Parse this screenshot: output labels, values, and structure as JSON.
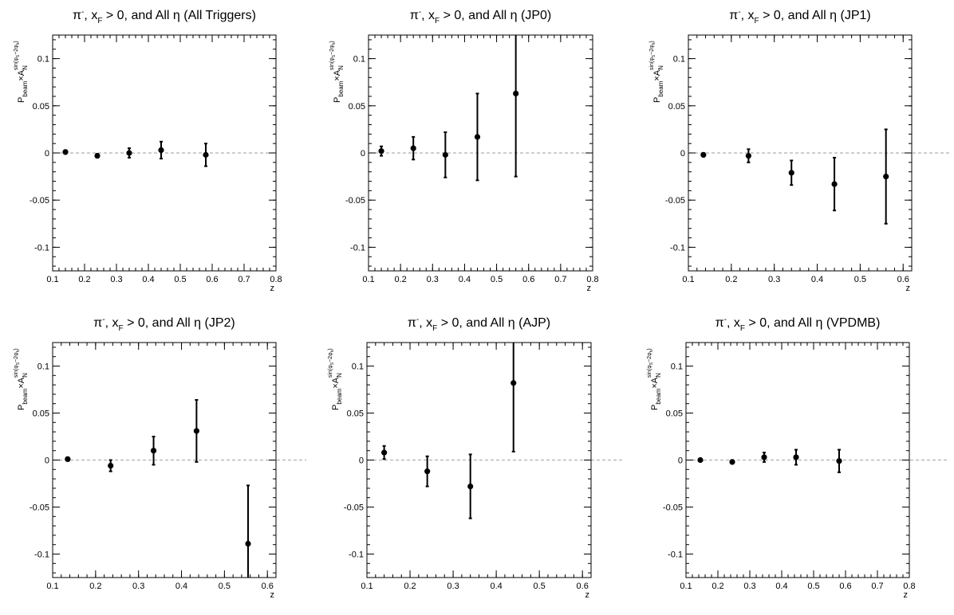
{
  "chart_data": [
    {
      "type": "scatter",
      "title": "π⁻, xF > 0, and All η (All Triggers)",
      "title_parts": {
        "particle": "π",
        "charge": "-",
        "xf": "x",
        "xf_sub": "F",
        "rest": " > 0, and All η (All Triggers)"
      },
      "xlabel": "z",
      "ylabel": "Pbeam×AN^sin(φS−2φh)",
      "xlim": [
        0.1,
        0.8
      ],
      "ylim": [
        -0.125,
        0.125
      ],
      "xticks": [
        "0.1",
        "0.2",
        "0.3",
        "0.4",
        "0.5",
        "0.6",
        "0.7",
        "0.8"
      ],
      "xtick_values": [
        0.1,
        0.2,
        0.3,
        0.4,
        0.5,
        0.6,
        0.7,
        0.8
      ],
      "yticks": [
        "-0.1",
        "-0.05",
        "0",
        "0.05",
        "0.1"
      ],
      "ytick_values": [
        -0.1,
        -0.05,
        0,
        0.05,
        0.1
      ],
      "x": [
        0.14,
        0.24,
        0.34,
        0.44,
        0.58
      ],
      "y": [
        0.001,
        -0.003,
        0.0,
        0.003,
        -0.002
      ],
      "yerr": [
        0.002,
        0.002,
        0.005,
        0.009,
        0.012
      ]
    },
    {
      "type": "scatter",
      "title": "π⁻, xF > 0, and All η (JP0)",
      "title_parts": {
        "particle": "π",
        "charge": "-",
        "xf": "x",
        "xf_sub": "F",
        "rest": " > 0, and All η (JP0)"
      },
      "xlabel": "z",
      "ylabel": "Pbeam×AN^sin(φS−2φh)",
      "xlim": [
        0.1,
        0.8
      ],
      "ylim": [
        -0.125,
        0.125
      ],
      "xticks": [
        "0.1",
        "0.2",
        "0.3",
        "0.4",
        "0.5",
        "0.6",
        "0.7",
        "0.8"
      ],
      "xtick_values": [
        0.1,
        0.2,
        0.3,
        0.4,
        0.5,
        0.6,
        0.7,
        0.8
      ],
      "yticks": [
        "-0.1",
        "-0.05",
        "0",
        "0.05",
        "0.1"
      ],
      "ytick_values": [
        -0.1,
        -0.05,
        0,
        0.05,
        0.1
      ],
      "x": [
        0.14,
        0.24,
        0.34,
        0.44,
        0.56
      ],
      "y": [
        0.002,
        0.005,
        -0.002,
        0.017,
        0.063
      ],
      "yerr": [
        0.005,
        0.012,
        0.024,
        0.046,
        0.088
      ]
    },
    {
      "type": "scatter",
      "title": "π⁻, xF > 0, and All η (JP1)",
      "title_parts": {
        "particle": "π",
        "charge": "-",
        "xf": "x",
        "xf_sub": "F",
        "rest": " > 0, and All η (JP1)"
      },
      "xlabel": "z",
      "ylabel": "Pbeam×AN^sin(φS−2φh)",
      "xlim": [
        0.1,
        0.62
      ],
      "ylim": [
        -0.125,
        0.125
      ],
      "xticks": [
        "0.1",
        "0.2",
        "0.3",
        "0.4",
        "0.5",
        "0.6"
      ],
      "xtick_values": [
        0.1,
        0.2,
        0.3,
        0.4,
        0.5,
        0.6
      ],
      "yticks": [
        "-0.1",
        "-0.05",
        "0",
        "0.05",
        "0.1"
      ],
      "ytick_values": [
        -0.1,
        -0.05,
        0,
        0.05,
        0.1
      ],
      "x": [
        0.135,
        0.24,
        0.34,
        0.44,
        0.56
      ],
      "y": [
        -0.002,
        -0.003,
        -0.021,
        -0.033,
        -0.025
      ],
      "yerr": [
        0.002,
        0.007,
        0.013,
        0.028,
        0.05
      ]
    },
    {
      "type": "scatter",
      "title": "π⁻, xF > 0, and All η (JP2)",
      "title_parts": {
        "particle": "π",
        "charge": "-",
        "xf": "x",
        "xf_sub": "F",
        "rest": " > 0, and All η (JP2)"
      },
      "xlabel": "z",
      "ylabel": "Pbeam×AN^sin(φS−2φh)",
      "xlim": [
        0.1,
        0.62
      ],
      "ylim": [
        -0.125,
        0.125
      ],
      "xticks": [
        "0.1",
        "0.2",
        "0.3",
        "0.4",
        "0.5",
        "0.6"
      ],
      "xtick_values": [
        0.1,
        0.2,
        0.3,
        0.4,
        0.5,
        0.6
      ],
      "yticks": [
        "-0.1",
        "-0.05",
        "0",
        "0.05",
        "0.1"
      ],
      "ytick_values": [
        -0.1,
        -0.05,
        0,
        0.05,
        0.1
      ],
      "x": [
        0.135,
        0.235,
        0.335,
        0.435,
        0.555
      ],
      "y": [
        0.001,
        -0.006,
        0.01,
        0.031,
        -0.089
      ],
      "yerr": [
        0.002,
        0.006,
        0.015,
        0.033,
        0.062
      ]
    },
    {
      "type": "scatter",
      "title": "π⁻, xF > 0, and All η (AJP)",
      "title_parts": {
        "particle": "π",
        "charge": "-",
        "xf": "x",
        "xf_sub": "F",
        "rest": " > 0, and All η (AJP)"
      },
      "xlabel": "z",
      "ylabel": "Pbeam×AN^sin(φS−2φh)",
      "xlim": [
        0.1,
        0.62
      ],
      "ylim": [
        -0.125,
        0.125
      ],
      "xticks": [
        "0.1",
        "0.2",
        "0.3",
        "0.4",
        "0.5",
        "0.6"
      ],
      "xtick_values": [
        0.1,
        0.2,
        0.3,
        0.4,
        0.5,
        0.6
      ],
      "yticks": [
        "-0.1",
        "-0.05",
        "0",
        "0.05",
        "0.1"
      ],
      "ytick_values": [
        -0.1,
        -0.05,
        0,
        0.05,
        0.1
      ],
      "x": [
        0.14,
        0.24,
        0.34,
        0.44
      ],
      "y": [
        0.008,
        -0.012,
        -0.028,
        0.082
      ],
      "yerr": [
        0.007,
        0.016,
        0.034,
        0.073
      ]
    },
    {
      "type": "scatter",
      "title": "π⁻, xF > 0, and All η (VPDMB)",
      "title_parts": {
        "particle": "π",
        "charge": "-",
        "xf": "x",
        "xf_sub": "F",
        "rest": " > 0, and All η (VPDMB)"
      },
      "xlabel": "z",
      "ylabel": "Pbeam×AN^sin(φS−2φh)",
      "xlim": [
        0.1,
        0.8
      ],
      "ylim": [
        -0.125,
        0.125
      ],
      "xticks": [
        "0.1",
        "0.2",
        "0.3",
        "0.4",
        "0.5",
        "0.6",
        "0.7",
        "0.8"
      ],
      "xtick_values": [
        0.1,
        0.2,
        0.3,
        0.4,
        0.5,
        0.6,
        0.7,
        0.8
      ],
      "yticks": [
        "-0.1",
        "-0.05",
        "0",
        "0.05",
        "0.1"
      ],
      "ytick_values": [
        -0.1,
        -0.05,
        0,
        0.05,
        0.1
      ],
      "x": [
        0.145,
        0.245,
        0.345,
        0.445,
        0.58
      ],
      "y": [
        0.0,
        -0.002,
        0.003,
        0.003,
        -0.001
      ],
      "yerr": [
        0.001,
        0.002,
        0.005,
        0.008,
        0.012
      ]
    }
  ],
  "ylabel_parts": {
    "p": "P",
    "p_sub": "beam",
    "times": "×",
    "a": "A",
    "a_sub": "N",
    "a_sup": "sin(φ",
    "a_sup_s": "S",
    "a_sup_mid": "−2φ",
    "a_sup_h": "h",
    "a_sup_end": ")"
  },
  "colors": {
    "marker": "#000000",
    "zero_line": "#b0b0b0",
    "frame": "#000000"
  }
}
